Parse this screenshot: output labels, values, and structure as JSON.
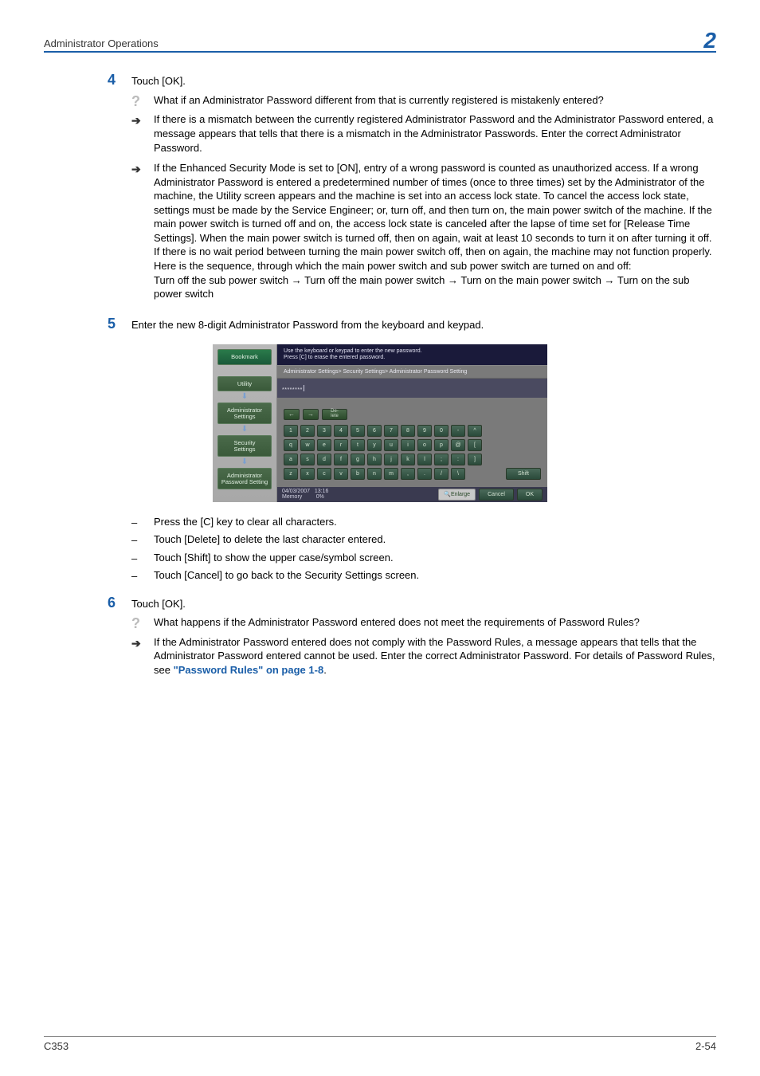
{
  "header": {
    "title": "Administrator Operations",
    "chapter": "2"
  },
  "steps": {
    "s4": {
      "num": "4",
      "text": "Touch [OK].",
      "q": "What if an Administrator Password different from that is currently registered is mistakenly entered?",
      "a1": "If there is a mismatch between the currently registered Administrator Password and the Administrator Password entered, a message appears that tells that there is a mismatch in the Administrator Passwords. Enter the correct Administrator Password.",
      "a2_p1": "If the Enhanced Security Mode is set to [ON], entry of a wrong password is counted as unauthorized access. If a wrong Administrator Password is entered a predetermined number of times (once to three times) set by the Administrator of the machine, the Utility screen appears and the machine is set into an access lock state. To cancel the access lock state, settings must be made by the Service Engineer; or, turn off, and then turn on, the main power switch of the machine. If the main power switch is turned off and on, the access lock state is canceled after the lapse of time set for [Release Time Settings]. When the main power switch is turned off, then on again, wait at least 10 seconds to turn it on after turning it off. If there is no wait period between turning the main power switch off, then on again, the machine may not function properly.",
      "a2_p2": "Here is the sequence, through which the main power switch and sub power switch are turned on and off:",
      "a2_p3": "Turn off the sub power switch → Turn off the main power switch → Turn on the main power switch → Turn on the sub power switch"
    },
    "s5": {
      "num": "5",
      "text": "Enter the new 8-digit Administrator Password from the keyboard and keypad.",
      "b1": "Press the [C] key to clear all characters.",
      "b2": "Touch [Delete] to delete the last character entered.",
      "b3": "Touch [Shift] to show the upper case/symbol screen.",
      "b4": "Touch [Cancel] to go back to the Security Settings screen."
    },
    "s6": {
      "num": "6",
      "text": "Touch [OK].",
      "q": "What happens if the Administrator Password entered does not meet the requirements of Password Rules?",
      "a1": "If the Administrator Password entered does not comply with the Password Rules, a message appears that tells that the Administrator Password entered cannot be used. Enter the correct Administrator Password. For details of Password Rules, see ",
      "link": "\"Password Rules\" on page 1-8",
      "period": "."
    }
  },
  "figure": {
    "sidebar": {
      "bookmark": "Bookmark",
      "utility": "Utility",
      "admin_settings": "Administrator\nSettings",
      "security_settings": "Security\nSettings",
      "admin_pwd": "Administrator\nPassword Setting"
    },
    "instr": "Use the keyboard or keypad to enter the new password.\nPress [C] to erase the entered password.",
    "crumb": "Administrator Settings> Security Settings> Administrator Password Setting",
    "password": "********",
    "delete_key": "De-\nlete",
    "rows": {
      "r1": [
        "1",
        "2",
        "3",
        "4",
        "5",
        "6",
        "7",
        "8",
        "9",
        "0",
        "-",
        "^"
      ],
      "r2": [
        "q",
        "w",
        "e",
        "r",
        "t",
        "y",
        "u",
        "i",
        "o",
        "p",
        "@",
        "["
      ],
      "r3": [
        "a",
        "s",
        "d",
        "f",
        "g",
        "h",
        "j",
        "k",
        "l",
        ";",
        ":",
        "]"
      ],
      "r4": [
        "z",
        "x",
        "c",
        "v",
        "b",
        "n",
        "m",
        ",",
        ".",
        "/",
        "\\"
      ]
    },
    "shift": "Shift",
    "footer": {
      "left": "04/03/2007   13:16\nMemory         0%",
      "enlarge": "Enlarge",
      "cancel": "Cancel",
      "ok": "OK"
    }
  },
  "footer": {
    "left": "C353",
    "right": "2-54"
  },
  "colors": {
    "accent": "#1a5ea8",
    "icon_gray": "#bbbbbb"
  }
}
